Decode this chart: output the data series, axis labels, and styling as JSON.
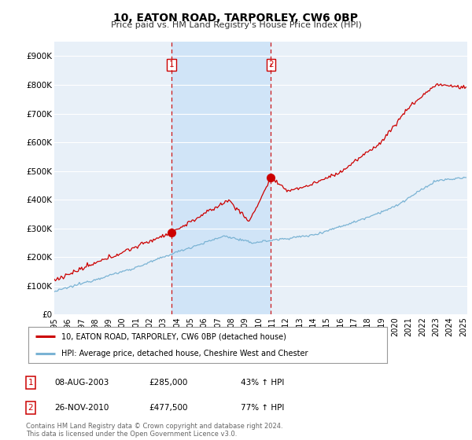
{
  "title": "10, EATON ROAD, TARPORLEY, CW6 0BP",
  "subtitle": "Price paid vs. HM Land Registry's House Price Index (HPI)",
  "ylabel_ticks": [
    "£0",
    "£100K",
    "£200K",
    "£300K",
    "£400K",
    "£500K",
    "£600K",
    "£700K",
    "£800K",
    "£900K"
  ],
  "ytick_values": [
    0,
    100000,
    200000,
    300000,
    400000,
    500000,
    600000,
    700000,
    800000,
    900000
  ],
  "ylim": [
    0,
    950000
  ],
  "xlim_start": 1995.0,
  "xlim_end": 2025.3,
  "background_color": "#ffffff",
  "plot_bg_color": "#e8f0f8",
  "shade_color": "#d0e4f7",
  "grid_color": "#ffffff",
  "sale1_date": 2003.58,
  "sale1_price": 285000,
  "sale2_date": 2010.9,
  "sale2_price": 477500,
  "sale_line_color": "#cc0000",
  "legend_label1": "10, EATON ROAD, TARPORLEY, CW6 0BP (detached house)",
  "legend_label2": "HPI: Average price, detached house, Cheshire West and Chester",
  "table_row1": [
    "1",
    "08-AUG-2003",
    "£285,000",
    "43% ↑ HPI"
  ],
  "table_row2": [
    "2",
    "26-NOV-2010",
    "£477,500",
    "77% ↑ HPI"
  ],
  "footnote": "Contains HM Land Registry data © Crown copyright and database right 2024.\nThis data is licensed under the Open Government Licence v3.0.",
  "red_line_color": "#cc0000",
  "blue_line_color": "#7ab3d4"
}
